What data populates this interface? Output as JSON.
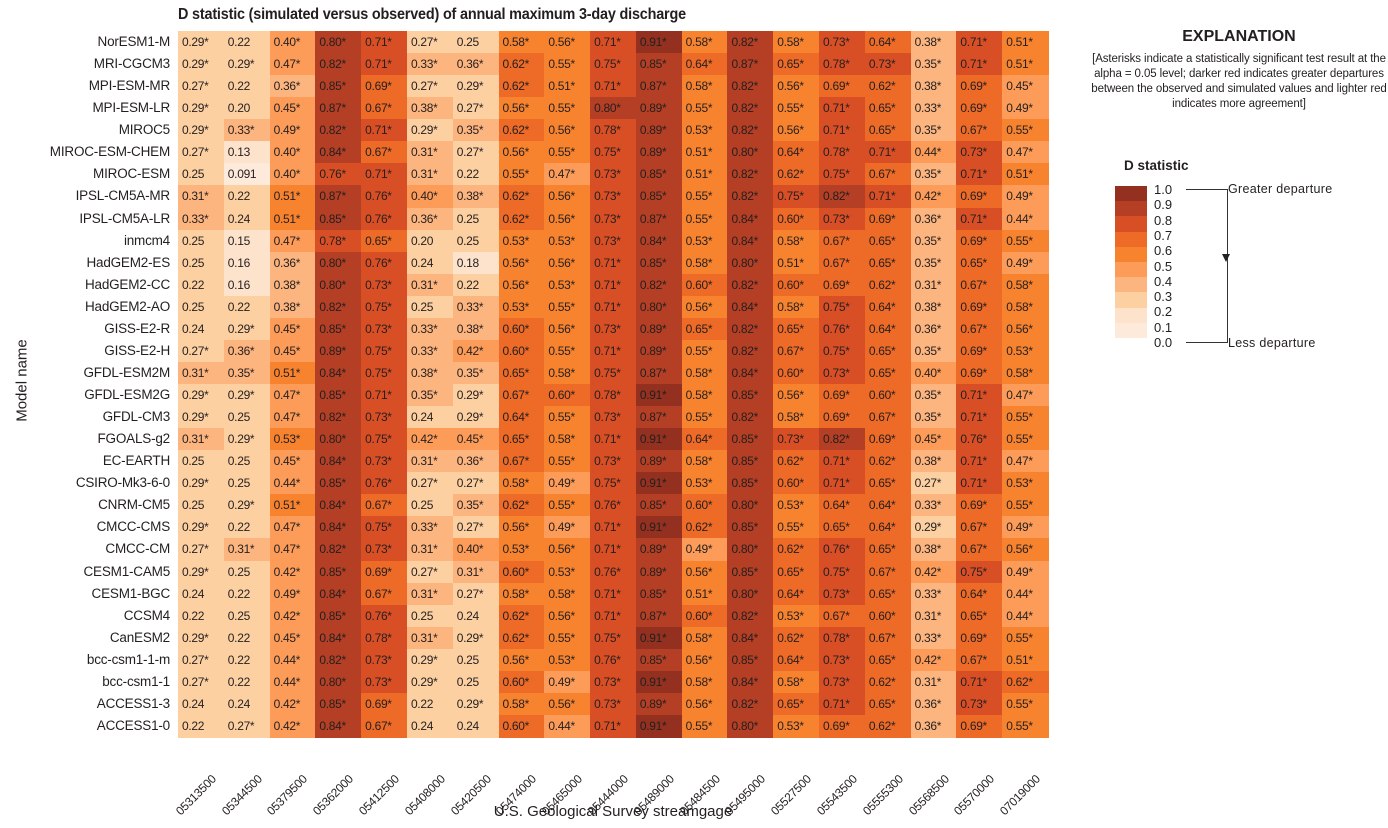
{
  "chart_data": {
    "type": "heatmap",
    "title": "D statistic (simulated versus observed) of annual maximum 3-day discharge",
    "xlabel": "U.S. Geological Survey streamgage",
    "ylabel": "Model name",
    "columns": [
      "05313500",
      "05344500",
      "05379500",
      "05362000",
      "05412500",
      "05408000",
      "05420500",
      "05474000",
      "05465000",
      "05444000",
      "05489000",
      "05484500",
      "05495000",
      "05527500",
      "05543500",
      "05555300",
      "05568500",
      "05570000",
      "07019000"
    ],
    "rows": [
      {
        "model": "NorESM1-M",
        "values": [
          "0.29*",
          "0.22",
          "0.40*",
          "0.80*",
          "0.71*",
          "0.27*",
          "0.25",
          "0.58*",
          "0.56*",
          "0.71*",
          "0.91*",
          "0.58*",
          "0.82*",
          "0.58*",
          "0.73*",
          "0.64*",
          "0.38*",
          "0.71*",
          "0.51*"
        ]
      },
      {
        "model": "MRI-CGCM3",
        "values": [
          "0.29*",
          "0.29*",
          "0.47*",
          "0.82*",
          "0.71*",
          "0.33*",
          "0.36*",
          "0.62*",
          "0.55*",
          "0.75*",
          "0.85*",
          "0.64*",
          "0.87*",
          "0.65*",
          "0.78*",
          "0.73*",
          "0.35*",
          "0.71*",
          "0.51*"
        ]
      },
      {
        "model": "MPI-ESM-MR",
        "values": [
          "0.27*",
          "0.22",
          "0.36*",
          "0.85*",
          "0.69*",
          "0.27*",
          "0.29*",
          "0.62*",
          "0.51*",
          "0.71*",
          "0.87*",
          "0.58*",
          "0.82*",
          "0.56*",
          "0.69*",
          "0.62*",
          "0.38*",
          "0.69*",
          "0.45*"
        ]
      },
      {
        "model": "MPI-ESM-LR",
        "values": [
          "0.29*",
          "0.20",
          "0.45*",
          "0.87*",
          "0.67*",
          "0.38*",
          "0.27*",
          "0.56*",
          "0.55*",
          "0.80*",
          "0.89*",
          "0.55*",
          "0.82*",
          "0.55*",
          "0.71*",
          "0.65*",
          "0.33*",
          "0.69*",
          "0.49*"
        ]
      },
      {
        "model": "MIROC5",
        "values": [
          "0.29*",
          "0.33*",
          "0.49*",
          "0.82*",
          "0.71*",
          "0.29*",
          "0.35*",
          "0.62*",
          "0.56*",
          "0.78*",
          "0.89*",
          "0.53*",
          "0.82*",
          "0.56*",
          "0.71*",
          "0.65*",
          "0.35*",
          "0.67*",
          "0.55*"
        ]
      },
      {
        "model": "MIROC-ESM-CHEM",
        "values": [
          "0.27*",
          "0.13",
          "0.40*",
          "0.84*",
          "0.67*",
          "0.31*",
          "0.27*",
          "0.56*",
          "0.55*",
          "0.75*",
          "0.89*",
          "0.51*",
          "0.80*",
          "0.64*",
          "0.78*",
          "0.71*",
          "0.44*",
          "0.73*",
          "0.47*"
        ]
      },
      {
        "model": "MIROC-ESM",
        "values": [
          "0.25",
          "0.091",
          "0.40*",
          "0.76*",
          "0.71*",
          "0.31*",
          "0.22",
          "0.55*",
          "0.47*",
          "0.73*",
          "0.85*",
          "0.51*",
          "0.82*",
          "0.62*",
          "0.75*",
          "0.67*",
          "0.35*",
          "0.71*",
          "0.51*"
        ]
      },
      {
        "model": "IPSL-CM5A-MR",
        "values": [
          "0.31*",
          "0.22",
          "0.51*",
          "0.87*",
          "0.76*",
          "0.40*",
          "0.38*",
          "0.62*",
          "0.56*",
          "0.73*",
          "0.85*",
          "0.55*",
          "0.82*",
          "0.75*",
          "0.82*",
          "0.71*",
          "0.42*",
          "0.69*",
          "0.49*"
        ]
      },
      {
        "model": "IPSL-CM5A-LR",
        "values": [
          "0.33*",
          "0.24",
          "0.51*",
          "0.85*",
          "0.76*",
          "0.36*",
          "0.25",
          "0.62*",
          "0.56*",
          "0.73*",
          "0.87*",
          "0.55*",
          "0.84*",
          "0.60*",
          "0.73*",
          "0.69*",
          "0.36*",
          "0.71*",
          "0.44*"
        ]
      },
      {
        "model": "inmcm4",
        "values": [
          "0.25",
          "0.15",
          "0.47*",
          "0.78*",
          "0.65*",
          "0.20",
          "0.25",
          "0.53*",
          "0.53*",
          "0.73*",
          "0.84*",
          "0.53*",
          "0.84*",
          "0.58*",
          "0.67*",
          "0.65*",
          "0.35*",
          "0.69*",
          "0.55*"
        ]
      },
      {
        "model": "HadGEM2-ES",
        "values": [
          "0.25",
          "0.16",
          "0.36*",
          "0.80*",
          "0.76*",
          "0.24",
          "0.18",
          "0.56*",
          "0.56*",
          "0.71*",
          "0.85*",
          "0.58*",
          "0.80*",
          "0.51*",
          "0.67*",
          "0.65*",
          "0.35*",
          "0.65*",
          "0.49*"
        ]
      },
      {
        "model": "HadGEM2-CC",
        "values": [
          "0.22",
          "0.16",
          "0.38*",
          "0.80*",
          "0.73*",
          "0.31*",
          "0.22",
          "0.56*",
          "0.53*",
          "0.71*",
          "0.82*",
          "0.60*",
          "0.82*",
          "0.60*",
          "0.69*",
          "0.62*",
          "0.31*",
          "0.67*",
          "0.58*"
        ]
      },
      {
        "model": "HadGEM2-AO",
        "values": [
          "0.25",
          "0.22",
          "0.38*",
          "0.82*",
          "0.75*",
          "0.25",
          "0.33*",
          "0.53*",
          "0.55*",
          "0.71*",
          "0.80*",
          "0.56*",
          "0.84*",
          "0.58*",
          "0.75*",
          "0.64*",
          "0.38*",
          "0.69*",
          "0.58*"
        ]
      },
      {
        "model": "GISS-E2-R",
        "values": [
          "0.24",
          "0.29*",
          "0.45*",
          "0.85*",
          "0.73*",
          "0.33*",
          "0.38*",
          "0.60*",
          "0.56*",
          "0.73*",
          "0.89*",
          "0.65*",
          "0.82*",
          "0.65*",
          "0.76*",
          "0.64*",
          "0.36*",
          "0.67*",
          "0.56*"
        ]
      },
      {
        "model": "GISS-E2-H",
        "values": [
          "0.27*",
          "0.36*",
          "0.45*",
          "0.89*",
          "0.75*",
          "0.33*",
          "0.42*",
          "0.60*",
          "0.55*",
          "0.71*",
          "0.89*",
          "0.55*",
          "0.82*",
          "0.67*",
          "0.75*",
          "0.65*",
          "0.35*",
          "0.69*",
          "0.53*"
        ]
      },
      {
        "model": "GFDL-ESM2M",
        "values": [
          "0.31*",
          "0.35*",
          "0.51*",
          "0.84*",
          "0.75*",
          "0.38*",
          "0.35*",
          "0.65*",
          "0.58*",
          "0.75*",
          "0.87*",
          "0.58*",
          "0.84*",
          "0.60*",
          "0.73*",
          "0.65*",
          "0.40*",
          "0.69*",
          "0.58*"
        ]
      },
      {
        "model": "GFDL-ESM2G",
        "values": [
          "0.29*",
          "0.29*",
          "0.47*",
          "0.85*",
          "0.71*",
          "0.35*",
          "0.29*",
          "0.67*",
          "0.60*",
          "0.78*",
          "0.91*",
          "0.58*",
          "0.85*",
          "0.56*",
          "0.69*",
          "0.60*",
          "0.35*",
          "0.71*",
          "0.47*"
        ]
      },
      {
        "model": "GFDL-CM3",
        "values": [
          "0.29*",
          "0.25",
          "0.47*",
          "0.82*",
          "0.73*",
          "0.24",
          "0.29*",
          "0.64*",
          "0.55*",
          "0.73*",
          "0.87*",
          "0.55*",
          "0.82*",
          "0.58*",
          "0.69*",
          "0.67*",
          "0.35*",
          "0.71*",
          "0.55*"
        ]
      },
      {
        "model": "FGOALS-g2",
        "values": [
          "0.31*",
          "0.29*",
          "0.53*",
          "0.80*",
          "0.75*",
          "0.42*",
          "0.45*",
          "0.65*",
          "0.58*",
          "0.71*",
          "0.91*",
          "0.64*",
          "0.85*",
          "0.73*",
          "0.82*",
          "0.69*",
          "0.45*",
          "0.76*",
          "0.55*"
        ]
      },
      {
        "model": "EC-EARTH",
        "values": [
          "0.25",
          "0.25",
          "0.45*",
          "0.84*",
          "0.73*",
          "0.31*",
          "0.36*",
          "0.67*",
          "0.55*",
          "0.73*",
          "0.89*",
          "0.58*",
          "0.85*",
          "0.62*",
          "0.71*",
          "0.62*",
          "0.38*",
          "0.71*",
          "0.47*"
        ]
      },
      {
        "model": "CSIRO-Mk3-6-0",
        "values": [
          "0.29*",
          "0.25",
          "0.44*",
          "0.85*",
          "0.76*",
          "0.27*",
          "0.27*",
          "0.58*",
          "0.49*",
          "0.75*",
          "0.91*",
          "0.53*",
          "0.85*",
          "0.60*",
          "0.71*",
          "0.65*",
          "0.27*",
          "0.71*",
          "0.53*"
        ]
      },
      {
        "model": "CNRM-CM5",
        "values": [
          "0.25",
          "0.29*",
          "0.51*",
          "0.84*",
          "0.67*",
          "0.25",
          "0.35*",
          "0.62*",
          "0.55*",
          "0.76*",
          "0.85*",
          "0.60*",
          "0.80*",
          "0.53*",
          "0.64*",
          "0.64*",
          "0.33*",
          "0.69*",
          "0.55*"
        ]
      },
      {
        "model": "CMCC-CMS",
        "values": [
          "0.29*",
          "0.22",
          "0.47*",
          "0.84*",
          "0.75*",
          "0.33*",
          "0.27*",
          "0.56*",
          "0.49*",
          "0.71*",
          "0.91*",
          "0.62*",
          "0.85*",
          "0.55*",
          "0.65*",
          "0.64*",
          "0.29*",
          "0.67*",
          "0.49*"
        ]
      },
      {
        "model": "CMCC-CM",
        "values": [
          "0.27*",
          "0.31*",
          "0.47*",
          "0.82*",
          "0.73*",
          "0.31*",
          "0.40*",
          "0.53*",
          "0.56*",
          "0.71*",
          "0.89*",
          "0.49*",
          "0.80*",
          "0.62*",
          "0.76*",
          "0.65*",
          "0.38*",
          "0.67*",
          "0.56*"
        ]
      },
      {
        "model": "CESM1-CAM5",
        "values": [
          "0.29*",
          "0.25",
          "0.42*",
          "0.85*",
          "0.69*",
          "0.27*",
          "0.31*",
          "0.60*",
          "0.53*",
          "0.76*",
          "0.89*",
          "0.56*",
          "0.85*",
          "0.65*",
          "0.75*",
          "0.67*",
          "0.42*",
          "0.75*",
          "0.49*"
        ]
      },
      {
        "model": "CESM1-BGC",
        "values": [
          "0.24",
          "0.22",
          "0.49*",
          "0.84*",
          "0.67*",
          "0.31*",
          "0.27*",
          "0.58*",
          "0.58*",
          "0.71*",
          "0.85*",
          "0.51*",
          "0.80*",
          "0.64*",
          "0.73*",
          "0.65*",
          "0.33*",
          "0.64*",
          "0.44*"
        ]
      },
      {
        "model": "CCSM4",
        "values": [
          "0.22",
          "0.25",
          "0.42*",
          "0.85*",
          "0.76*",
          "0.25",
          "0.24",
          "0.62*",
          "0.56*",
          "0.71*",
          "0.87*",
          "0.60*",
          "0.82*",
          "0.53*",
          "0.67*",
          "0.60*",
          "0.31*",
          "0.65*",
          "0.44*"
        ]
      },
      {
        "model": "CanESM2",
        "values": [
          "0.29*",
          "0.22",
          "0.45*",
          "0.84*",
          "0.78*",
          "0.31*",
          "0.29*",
          "0.62*",
          "0.55*",
          "0.75*",
          "0.91*",
          "0.58*",
          "0.84*",
          "0.62*",
          "0.78*",
          "0.67*",
          "0.33*",
          "0.69*",
          "0.55*"
        ]
      },
      {
        "model": "bcc-csm1-1-m",
        "values": [
          "0.27*",
          "0.22",
          "0.44*",
          "0.82*",
          "0.73*",
          "0.29*",
          "0.25",
          "0.56*",
          "0.53*",
          "0.76*",
          "0.85*",
          "0.56*",
          "0.85*",
          "0.64*",
          "0.73*",
          "0.65*",
          "0.42*",
          "0.67*",
          "0.51*"
        ]
      },
      {
        "model": "bcc-csm1-1",
        "values": [
          "0.27*",
          "0.22",
          "0.44*",
          "0.80*",
          "0.73*",
          "0.29*",
          "0.25",
          "0.60*",
          "0.49*",
          "0.73*",
          "0.91*",
          "0.58*",
          "0.84*",
          "0.58*",
          "0.73*",
          "0.62*",
          "0.31*",
          "0.71*",
          "0.62*"
        ]
      },
      {
        "model": "ACCESS1-3",
        "values": [
          "0.24",
          "0.24",
          "0.42*",
          "0.85*",
          "0.69*",
          "0.22",
          "0.29*",
          "0.58*",
          "0.56*",
          "0.73*",
          "0.89*",
          "0.56*",
          "0.82*",
          "0.65*",
          "0.71*",
          "0.65*",
          "0.36*",
          "0.73*",
          "0.55*"
        ]
      },
      {
        "model": "ACCESS1-0",
        "values": [
          "0.22",
          "0.27*",
          "0.42*",
          "0.84*",
          "0.67*",
          "0.24",
          "0.24",
          "0.60*",
          "0.44*",
          "0.71*",
          "0.91*",
          "0.55*",
          "0.80*",
          "0.53*",
          "0.69*",
          "0.62*",
          "0.36*",
          "0.69*",
          "0.55*"
        ]
      }
    ],
    "colorscale": {
      "title": "D statistic",
      "ticks": [
        "1.0",
        "0.9",
        "0.8",
        "0.7",
        "0.6",
        "0.5",
        "0.4",
        "0.3",
        "0.2",
        "0.1",
        "0.0"
      ],
      "bins_high_to_low": [
        "#93301f",
        "#b43f24",
        "#d94f25",
        "#ed6a27",
        "#f8832f",
        "#fc9c58",
        "#fdb57f",
        "#fdd0a2",
        "#fee3cc",
        "#feeadb"
      ],
      "range": [
        0,
        1
      ]
    },
    "grid": false,
    "legend_position": "right"
  },
  "legend": {
    "heading": "EXPLANATION",
    "note": "[Asterisks indicate a statistically significant test result at the alpha = 0.05 level; darker red indicates greater departures between the observed and simulated values and lighter red indicates more agreement]",
    "subtitle": "D statistic",
    "greater_label": "Greater departure",
    "less_label": "Less departure"
  }
}
